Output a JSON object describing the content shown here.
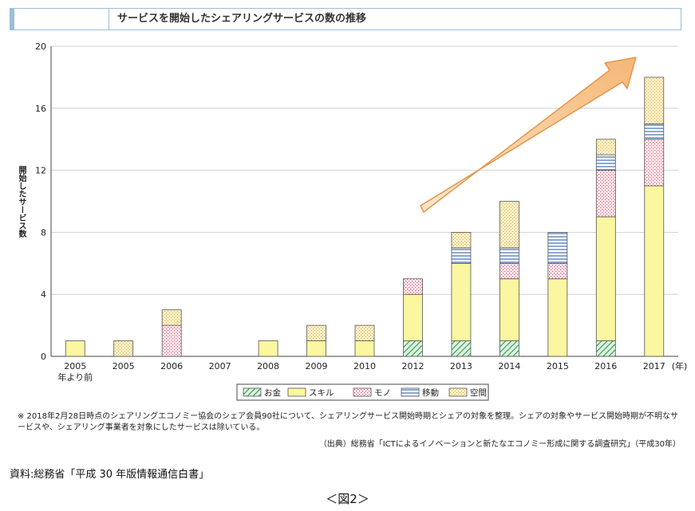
{
  "title": "サービスを開始したシェアリングサービスの数の推移",
  "chart_data": {
    "type": "bar",
    "stacked": true,
    "categories": [
      "2005\n年より前",
      "2005",
      "2006",
      "2007",
      "2008",
      "2009",
      "2010",
      "2012",
      "2013",
      "2014",
      "2015",
      "2016",
      "2017"
    ],
    "x_unit": "(年)",
    "ylabel": "開始したサービス数",
    "ylim": [
      0,
      20
    ],
    "yticks": [
      0,
      4,
      8,
      12,
      16,
      20
    ],
    "grid": true,
    "series": [
      {
        "name": "お金",
        "key": "money",
        "color": "#3aaa5c",
        "values": [
          0,
          0,
          0,
          0,
          0,
          0,
          0,
          1,
          1,
          1,
          0,
          1,
          0
        ]
      },
      {
        "name": "スキル",
        "key": "skill",
        "color": "#fbf6a0",
        "values": [
          1,
          0,
          0,
          0,
          1,
          1,
          1,
          3,
          5,
          4,
          5,
          8,
          11
        ]
      },
      {
        "name": "モノ",
        "key": "mono",
        "color": "#e05a7a",
        "values": [
          0,
          0,
          2,
          0,
          0,
          0,
          0,
          1,
          0,
          1,
          1,
          3,
          3
        ]
      },
      {
        "name": "移動",
        "key": "ido",
        "color": "#4a78b8",
        "values": [
          0,
          0,
          0,
          0,
          0,
          0,
          0,
          0,
          1,
          1,
          2,
          1,
          1
        ]
      },
      {
        "name": "空間",
        "key": "kukan",
        "color": "#f2cf66",
        "values": [
          0,
          1,
          1,
          0,
          0,
          1,
          1,
          0,
          1,
          3,
          0,
          1,
          3
        ]
      }
    ],
    "annotation": "increasing trend arrow"
  },
  "note": "※ 2018年2月28日時点のシェアリングエコノミー協会のシェア会員90社について、シェアリングサービス開始時期とシェアの対象を整理。シェアの対象やサービス開始時期が不明なサービスや、シェアリング事業者を対象にしたサービスは除いている。",
  "source": "（出典）総務省「ICTによるイノベーションと新たなエコノミー形成に関する調査研究」（平成30年）",
  "caption": "資料:総務省「平成 30 年版情報通信白書」",
  "figure_label": "＜図2＞"
}
